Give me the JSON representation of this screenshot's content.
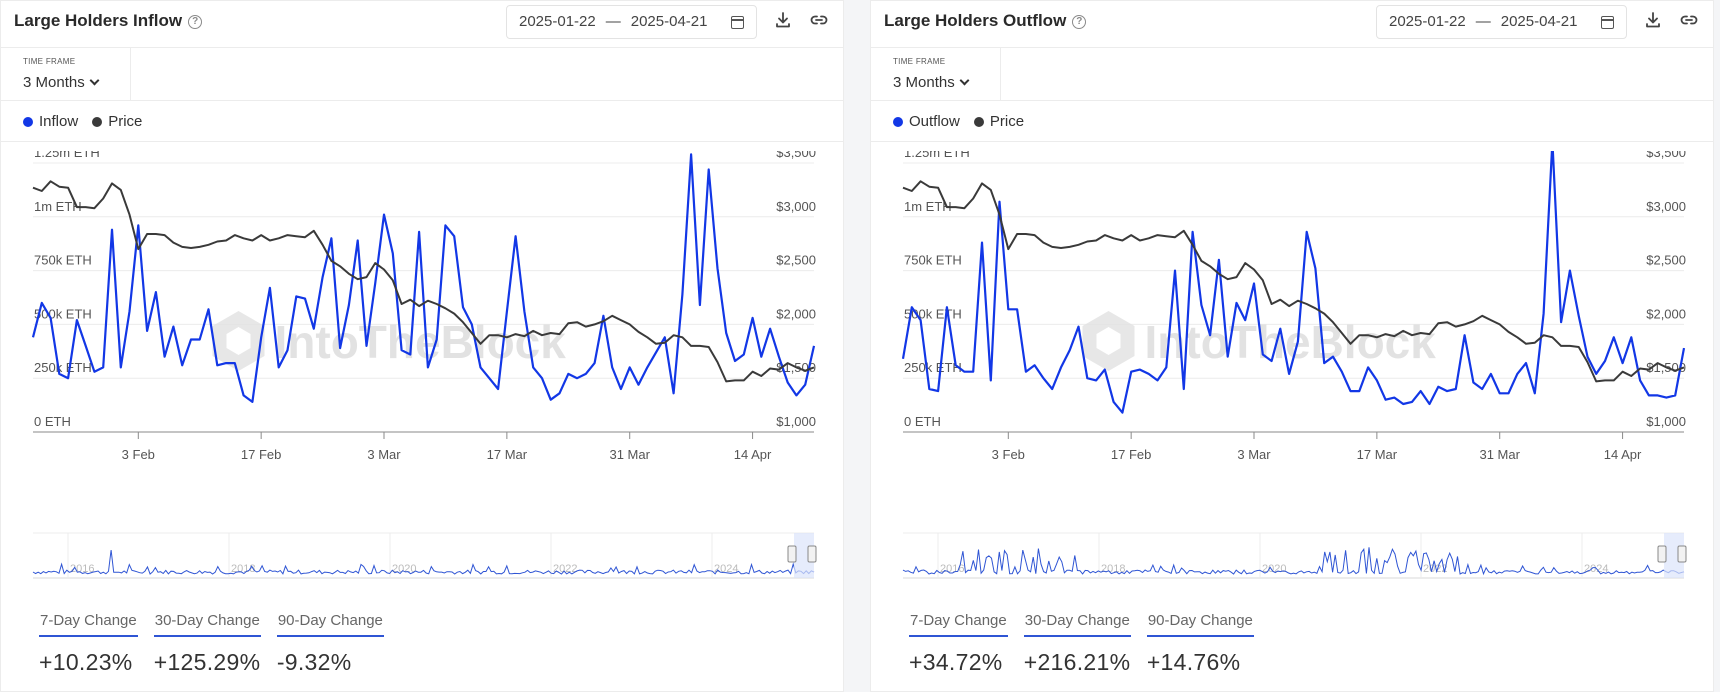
{
  "panels": [
    {
      "title": "Large Holders Inflow",
      "date_from": "2025-01-22",
      "date_sep": "—",
      "date_to": "2025-04-21",
      "timeframe_label": "TIME FRAME",
      "timeframe_value": "3 Months",
      "legend": [
        {
          "label": "Inflow",
          "color": "#1237e6"
        },
        {
          "label": "Price",
          "color": "#3a3a3a"
        }
      ],
      "watermark": "IntoTheBlock",
      "stats": [
        {
          "label": "7-Day Change",
          "value": "+10.23%"
        },
        {
          "label": "30-Day Change",
          "value": "+125.29%"
        },
        {
          "label": "90-Day Change",
          "value": "-9.32%"
        }
      ],
      "navigator_years": [
        "2016",
        "2018",
        "2020",
        "2022",
        "2024"
      ]
    },
    {
      "title": "Large Holders Outflow",
      "date_from": "2025-01-22",
      "date_sep": "—",
      "date_to": "2025-04-21",
      "timeframe_label": "TIME FRAME",
      "timeframe_value": "3 Months",
      "legend": [
        {
          "label": "Outflow",
          "color": "#1237e6"
        },
        {
          "label": "Price",
          "color": "#3a3a3a"
        }
      ],
      "watermark": "IntoTheBlock",
      "stats": [
        {
          "label": "7-Day Change",
          "value": "+34.72%"
        },
        {
          "label": "30-Day Change",
          "value": "+216.21%"
        },
        {
          "label": "90-Day Change",
          "value": "+14.76%"
        }
      ],
      "navigator_years": [
        "2016",
        "2018",
        "2020",
        "2022",
        "2024"
      ]
    }
  ],
  "chart_data": [
    {
      "type": "line",
      "title": "Large Holders Inflow",
      "x_start": "2025-01-22",
      "x_end": "2025-04-21",
      "x_ticks": [
        "3 Feb",
        "17 Feb",
        "3 Mar",
        "17 Mar",
        "31 Mar",
        "14 Apr"
      ],
      "y_left_ticks": [
        "0 ETH",
        "250k ETH",
        "500k ETH",
        "750k ETH",
        "1m ETH",
        "1.25m ETH"
      ],
      "y_left_range": [
        0,
        1250000
      ],
      "y_right_ticks": [
        "$1,000",
        "$1,500",
        "$2,000",
        "$2,500",
        "$3,000",
        "$3,500"
      ],
      "y_right_range": [
        1000,
        3500
      ],
      "legend_position": "top-left",
      "grid": true,
      "series": [
        {
          "name": "Inflow",
          "axis": "left",
          "color": "#1237e6",
          "values": [
            440000,
            600000,
            530000,
            270000,
            250000,
            520000,
            400000,
            280000,
            300000,
            940000,
            300000,
            560000,
            960000,
            470000,
            650000,
            350000,
            490000,
            310000,
            430000,
            430000,
            570000,
            310000,
            320000,
            320000,
            170000,
            140000,
            440000,
            670000,
            300000,
            380000,
            630000,
            620000,
            480000,
            720000,
            900000,
            390000,
            590000,
            890000,
            400000,
            690000,
            1010000,
            830000,
            380000,
            360000,
            930000,
            300000,
            430000,
            960000,
            910000,
            580000,
            500000,
            300000,
            250000,
            200000,
            560000,
            910000,
            560000,
            300000,
            250000,
            150000,
            180000,
            270000,
            250000,
            270000,
            320000,
            540000,
            300000,
            200000,
            300000,
            220000,
            300000,
            370000,
            440000,
            180000,
            640000,
            1290000,
            590000,
            1220000,
            760000,
            460000,
            330000,
            360000,
            530000,
            350000,
            480000,
            350000,
            230000,
            170000,
            220000,
            400000
          ]
        },
        {
          "name": "Price",
          "axis": "right",
          "color": "#3a3a3a",
          "values": [
            3270,
            3240,
            3330,
            3280,
            3270,
            3090,
            3090,
            3080,
            3170,
            3310,
            3250,
            3020,
            2700,
            2840,
            2840,
            2830,
            2760,
            2720,
            2710,
            2720,
            2740,
            2770,
            2780,
            2830,
            2800,
            2780,
            2830,
            2780,
            2800,
            2830,
            2820,
            2810,
            2870,
            2740,
            2590,
            2540,
            2470,
            2420,
            2440,
            2570,
            2510,
            2410,
            2190,
            2230,
            2170,
            2220,
            2190,
            2150,
            2100,
            2020,
            1920,
            1820,
            1900,
            1900,
            1880,
            1910,
            1890,
            1940,
            1900,
            1920,
            1910,
            2010,
            2020,
            1980,
            2000,
            2030,
            2080,
            2040,
            2000,
            1930,
            1880,
            1820,
            1830,
            1900,
            1880,
            1800,
            1800,
            1790,
            1650,
            1470,
            1480,
            1480,
            1560,
            1520,
            1590,
            1580,
            1640,
            1600,
            1570,
            1600
          ]
        }
      ]
    },
    {
      "type": "line",
      "title": "Large Holders Outflow",
      "x_start": "2025-01-22",
      "x_end": "2025-04-21",
      "x_ticks": [
        "3 Feb",
        "17 Feb",
        "3 Mar",
        "17 Mar",
        "31 Mar",
        "14 Apr"
      ],
      "y_left_ticks": [
        "0 ETH",
        "250k ETH",
        "500k ETH",
        "750k ETH",
        "1m ETH",
        "1.25m ETH"
      ],
      "y_left_range": [
        0,
        1250000
      ],
      "y_right_ticks": [
        "$1,000",
        "$1,500",
        "$2,000",
        "$2,500",
        "$3,000",
        "$3,500"
      ],
      "y_right_range": [
        1000,
        3500
      ],
      "legend_position": "top-left",
      "grid": true,
      "series": [
        {
          "name": "Outflow",
          "axis": "left",
          "color": "#1237e6",
          "values": [
            340000,
            580000,
            520000,
            200000,
            190000,
            580000,
            310000,
            280000,
            280000,
            880000,
            240000,
            1070000,
            570000,
            570000,
            280000,
            310000,
            250000,
            200000,
            300000,
            380000,
            490000,
            250000,
            240000,
            290000,
            140000,
            90000,
            280000,
            290000,
            270000,
            240000,
            300000,
            750000,
            200000,
            930000,
            590000,
            450000,
            800000,
            350000,
            600000,
            520000,
            690000,
            360000,
            330000,
            480000,
            270000,
            420000,
            930000,
            760000,
            320000,
            350000,
            280000,
            190000,
            190000,
            300000,
            240000,
            150000,
            160000,
            130000,
            140000,
            190000,
            130000,
            210000,
            190000,
            200000,
            450000,
            230000,
            200000,
            270000,
            180000,
            180000,
            270000,
            320000,
            180000,
            550000,
            1350000,
            510000,
            750000,
            540000,
            350000,
            270000,
            330000,
            440000,
            320000,
            440000,
            240000,
            170000,
            170000,
            160000,
            170000,
            390000
          ]
        },
        {
          "name": "Price",
          "axis": "right",
          "color": "#3a3a3a",
          "values": [
            3270,
            3240,
            3330,
            3280,
            3270,
            3090,
            3090,
            3080,
            3170,
            3310,
            3250,
            3020,
            2700,
            2840,
            2840,
            2830,
            2760,
            2720,
            2710,
            2720,
            2740,
            2770,
            2780,
            2830,
            2800,
            2780,
            2830,
            2780,
            2800,
            2830,
            2820,
            2810,
            2870,
            2740,
            2590,
            2540,
            2470,
            2420,
            2440,
            2570,
            2510,
            2410,
            2190,
            2230,
            2170,
            2220,
            2190,
            2150,
            2100,
            2020,
            1920,
            1820,
            1900,
            1900,
            1880,
            1910,
            1890,
            1940,
            1900,
            1920,
            1910,
            2010,
            2020,
            1980,
            2000,
            2030,
            2080,
            2040,
            2000,
            1930,
            1880,
            1820,
            1830,
            1900,
            1880,
            1800,
            1800,
            1790,
            1650,
            1470,
            1480,
            1480,
            1560,
            1520,
            1590,
            1580,
            1640,
            1600,
            1570,
            1600
          ]
        }
      ]
    }
  ]
}
